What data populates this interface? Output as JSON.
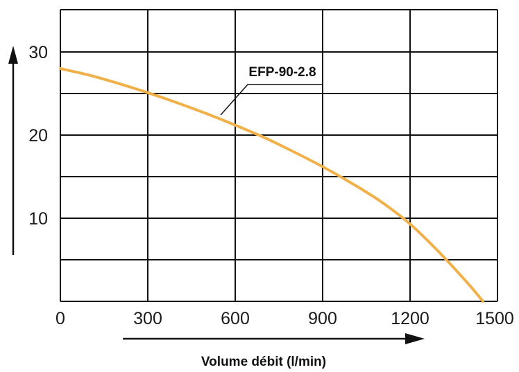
{
  "chart_data": {
    "type": "line",
    "title": "",
    "xlabel": "Volume débit (l/min)",
    "ylabel": "",
    "xlim": [
      0,
      1500
    ],
    "ylim": [
      0,
      30
    ],
    "x_ticks": [
      "0",
      "300",
      "600",
      "900",
      "1200",
      "1500"
    ],
    "y_ticks": [
      "10",
      "20",
      "30"
    ],
    "grid": true,
    "series": [
      {
        "name": "EFP-90-2.8",
        "color": "#f0b14a",
        "x": [
          0,
          100,
          200,
          300,
          400,
          500,
          600,
          700,
          800,
          900,
          1000,
          1100,
          1200,
          1300,
          1400,
          1450
        ],
        "y": [
          28.0,
          27.2,
          26.2,
          25.1,
          23.9,
          22.6,
          21.2,
          19.7,
          18.0,
          16.2,
          14.2,
          12.0,
          9.3,
          5.9,
          2.1,
          0.0
        ]
      }
    ]
  }
}
